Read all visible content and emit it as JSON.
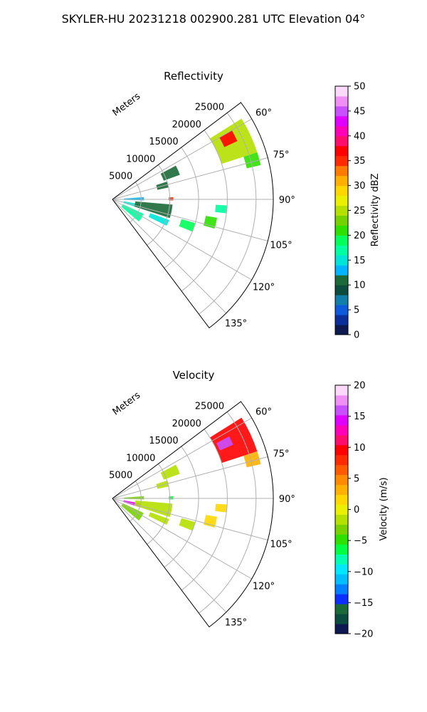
{
  "figure": {
    "suptitle": "SKYLER-HU  20231218  002900.281 UTC Elevation 04°"
  },
  "chart_data": [
    {
      "type": "heatmap",
      "projection": "polar-sector",
      "title": "Reflectivity",
      "radial_label": "Meters",
      "radial_ticks": [
        "5000",
        "10000",
        "15000",
        "20000",
        "25000"
      ],
      "radial_tick_values": [
        5000,
        10000,
        15000,
        20000,
        25000
      ],
      "rlim": [
        0,
        28000
      ],
      "theta_ticks": [
        "60°",
        "75°",
        "90°",
        "105°",
        "120°",
        "135°"
      ],
      "theta_tick_values": [
        60,
        75,
        90,
        105,
        120,
        135
      ],
      "theta_range_deg": [
        53,
        143
      ],
      "grid": true,
      "colorbar": {
        "label": "Reflectivity dBZ",
        "ticks": [
          "0",
          "5",
          "10",
          "15",
          "20",
          "25",
          "30",
          "35",
          "40",
          "45",
          "50"
        ],
        "range": [
          0,
          50
        ],
        "colors": [
          "#0d1a52",
          "#0b2f9a",
          "#0d5bdc",
          "#0f7ea8",
          "#0b4d3c",
          "#1b6a3a",
          "#00b4ff",
          "#00e5d8",
          "#00ffa0",
          "#00ff5a",
          "#2ee000",
          "#73d200",
          "#b5e000",
          "#e9f000",
          "#ffd700",
          "#ffb000",
          "#ff7a00",
          "#ff2a00",
          "#ff0000",
          "#ff0d6b",
          "#ff00b8",
          "#e000ff",
          "#c850ff",
          "#f090f5",
          "#fcd8fb"
        ]
      },
      "echoes": [
        {
          "theta": [
            58,
            72
          ],
          "r": [
            20000,
            26500
          ],
          "value": 24
        },
        {
          "theta": [
            60,
            65
          ],
          "r": [
            21500,
            24000
          ],
          "value": 36
        },
        {
          "theta": [
            72,
            77
          ],
          "r": [
            24000,
            26500
          ],
          "value": 20
        },
        {
          "theta": [
            62,
            70
          ],
          "r": [
            9500,
            12500
          ],
          "value": 11
        },
        {
          "theta": [
            72,
            78
          ],
          "r": [
            8000,
            10000
          ],
          "value": 10
        },
        {
          "theta": [
            86,
            92
          ],
          "r": [
            2000,
            5500
          ],
          "value": 12
        },
        {
          "theta": [
            100,
            108
          ],
          "r": [
            2000,
            5000
          ],
          "value": 14
        },
        {
          "theta": [
            115,
            130
          ],
          "r": [
            2000,
            6000
          ],
          "value": 16
        },
        {
          "theta": [
            88,
            91
          ],
          "r": [
            9800,
            10600
          ],
          "value": 34
        },
        {
          "theta": [
            95,
            108
          ],
          "r": [
            4000,
            10500
          ],
          "value": 11
        },
        {
          "theta": [
            110,
            116
          ],
          "r": [
            7000,
            10500
          ],
          "value": 14
        },
        {
          "theta": [
            100,
            106
          ],
          "r": [
            16500,
            18500
          ],
          "value": 20
        },
        {
          "theta": [
            106,
            112
          ],
          "r": [
            12500,
            15000
          ],
          "value": 18
        },
        {
          "theta": [
            93,
            97
          ],
          "r": [
            18000,
            20000
          ],
          "value": 16
        }
      ]
    },
    {
      "type": "heatmap",
      "projection": "polar-sector",
      "title": "Velocity",
      "radial_label": "Meters",
      "radial_ticks": [
        "5000",
        "10000",
        "15000",
        "20000",
        "25000"
      ],
      "radial_tick_values": [
        5000,
        10000,
        15000,
        20000,
        25000
      ],
      "rlim": [
        0,
        28000
      ],
      "theta_ticks": [
        "60°",
        "75°",
        "90°",
        "105°",
        "120°",
        "135°"
      ],
      "theta_tick_values": [
        60,
        75,
        90,
        105,
        120,
        135
      ],
      "theta_range_deg": [
        53,
        143
      ],
      "grid": true,
      "colorbar": {
        "label": "Velocity (m/s)",
        "ticks": [
          "−20",
          "−15",
          "−10",
          "−5",
          "0",
          "5",
          "10",
          "15",
          "20"
        ],
        "range": [
          -20,
          20
        ],
        "colors": [
          "#0d1a52",
          "#0b4d3c",
          "#1b6a3a",
          "#0a2fff",
          "#0080ff",
          "#00bfff",
          "#00e8ff",
          "#00ffb0",
          "#00ff40",
          "#2ee000",
          "#78d200",
          "#b5e000",
          "#e9f000",
          "#ffd700",
          "#ffb000",
          "#ff8a00",
          "#ff5a00",
          "#ff2a00",
          "#ff0000",
          "#ff0d6b",
          "#ff00b8",
          "#e000ff",
          "#c850ff",
          "#f090f5",
          "#fcd8fb"
        ]
      },
      "echoes": [
        {
          "theta": [
            58,
            72
          ],
          "r": [
            20000,
            26500
          ],
          "value": 9
        },
        {
          "theta": [
            62,
            66
          ],
          "r": [
            20500,
            23000
          ],
          "value": 16
        },
        {
          "theta": [
            72,
            77
          ],
          "r": [
            24000,
            26500
          ],
          "value": 3
        },
        {
          "theta": [
            62,
            70
          ],
          "r": [
            9500,
            12500
          ],
          "value": -2
        },
        {
          "theta": [
            72,
            78
          ],
          "r": [
            8000,
            10000
          ],
          "value": -1
        },
        {
          "theta": [
            86,
            92
          ],
          "r": [
            2000,
            5500
          ],
          "value": -4
        },
        {
          "theta": [
            100,
            108
          ],
          "r": [
            2000,
            5000
          ],
          "value": 15
        },
        {
          "theta": [
            115,
            130
          ],
          "r": [
            2000,
            6000
          ],
          "value": -3
        },
        {
          "theta": [
            88,
            91
          ],
          "r": [
            9800,
            10600
          ],
          "value": -6
        },
        {
          "theta": [
            95,
            108
          ],
          "r": [
            4000,
            10500
          ],
          "value": -1
        },
        {
          "theta": [
            110,
            116
          ],
          "r": [
            7000,
            10500
          ],
          "value": -2
        },
        {
          "theta": [
            100,
            106
          ],
          "r": [
            16500,
            18500
          ],
          "value": 2
        },
        {
          "theta": [
            106,
            112
          ],
          "r": [
            12500,
            15000
          ],
          "value": -2
        },
        {
          "theta": [
            93,
            97
          ],
          "r": [
            18000,
            20000
          ],
          "value": 1
        }
      ]
    }
  ]
}
